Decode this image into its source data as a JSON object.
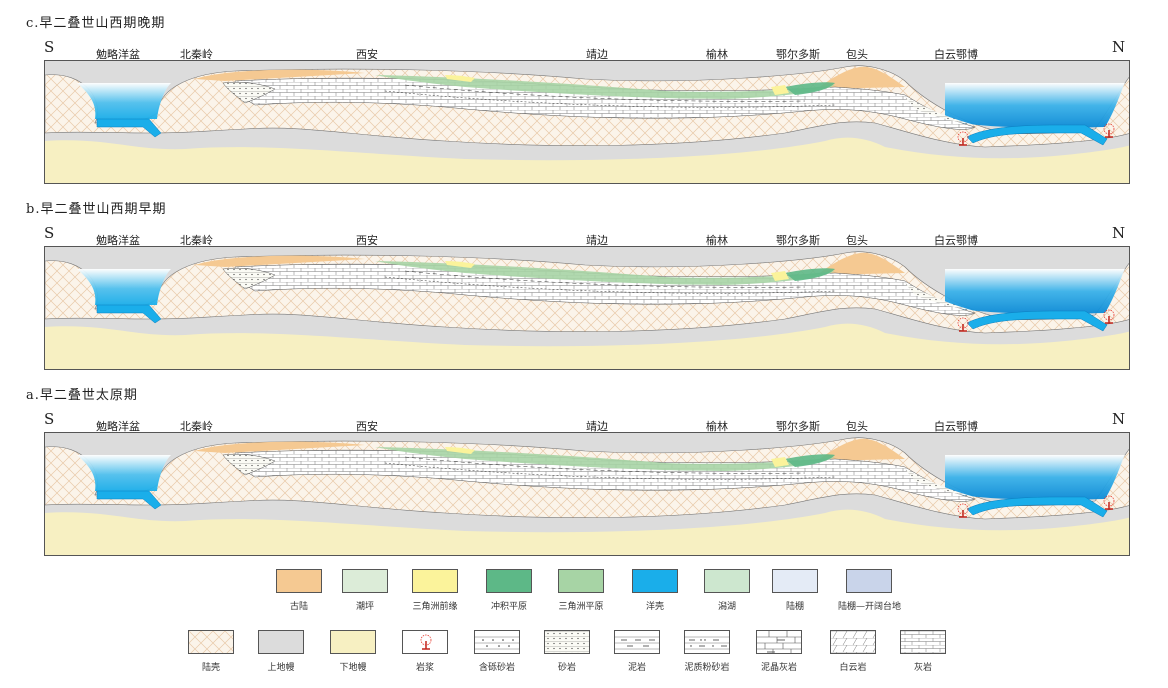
{
  "panels": [
    {
      "title": "c.早二叠世山西期晚期",
      "south": "S",
      "north": "N",
      "places": [
        "勉略洋盆",
        "北秦岭",
        "西安",
        "靖边",
        "榆林",
        "鄂尔多斯",
        "包头",
        "白云鄂博"
      ]
    },
    {
      "title": "b.早二叠世山西期早期",
      "south": "S",
      "north": "N",
      "places": [
        "勉略洋盆",
        "北秦岭",
        "西安",
        "靖边",
        "榆林",
        "鄂尔多斯",
        "包头",
        "白云鄂博"
      ]
    },
    {
      "title": "a.早二叠世太原期",
      "south": "S",
      "north": "N",
      "places": [
        "勉略洋盆",
        "北秦岭",
        "西安",
        "靖边",
        "榆林",
        "鄂尔多斯",
        "包头",
        "白云鄂博"
      ]
    }
  ],
  "legend": {
    "row1": [
      {
        "label": "古陆",
        "color": "#f5c992",
        "icon": "old-land-swatch"
      },
      {
        "label": "潮坪",
        "color": "#dcecd8",
        "icon": "tidal-flat-swatch"
      },
      {
        "label": "三角洲前缘",
        "color": "#fbf39b",
        "icon": "delta-front-swatch"
      },
      {
        "label": "冲积平原",
        "color": "#5db887",
        "icon": "alluvial-plain-swatch"
      },
      {
        "label": "三角洲平原",
        "color": "#a7d4a5",
        "icon": "delta-plain-swatch"
      },
      {
        "label": "洋壳",
        "color": "#1aaeea",
        "icon": "oceanic-crust-swatch"
      },
      {
        "label": "潟湖",
        "color": "#cde7cf",
        "icon": "lagoon-swatch"
      },
      {
        "label": "陆棚",
        "color": "#e4ebf6",
        "icon": "shelf-swatch"
      },
      {
        "label": "陆棚—开阔台地",
        "color": "#c9d4ea",
        "icon": "shelf-open-platform-swatch"
      }
    ],
    "row2": [
      {
        "label": "陆壳",
        "icon": "continental-crust-swatch"
      },
      {
        "label": "上地幔",
        "color": "#dcdcdc",
        "icon": "upper-mantle-swatch"
      },
      {
        "label": "下地幔",
        "color": "#f7f0c2",
        "icon": "lower-mantle-swatch"
      },
      {
        "label": "岩浆",
        "icon": "magma-icon"
      },
      {
        "label": "含砾砂岩",
        "icon": "pebbly-sandstone-pattern"
      },
      {
        "label": "砂岩",
        "icon": "sandstone-pattern"
      },
      {
        "label": "泥岩",
        "icon": "mudstone-pattern"
      },
      {
        "label": "泥质粉砂岩",
        "icon": "argillaceous-siltstone-pattern"
      },
      {
        "label": "泥晶灰岩",
        "icon": "micritic-limestone-pattern"
      },
      {
        "label": "白云岩",
        "icon": "dolomite-pattern"
      },
      {
        "label": "灰岩",
        "icon": "limestone-pattern"
      }
    ]
  }
}
